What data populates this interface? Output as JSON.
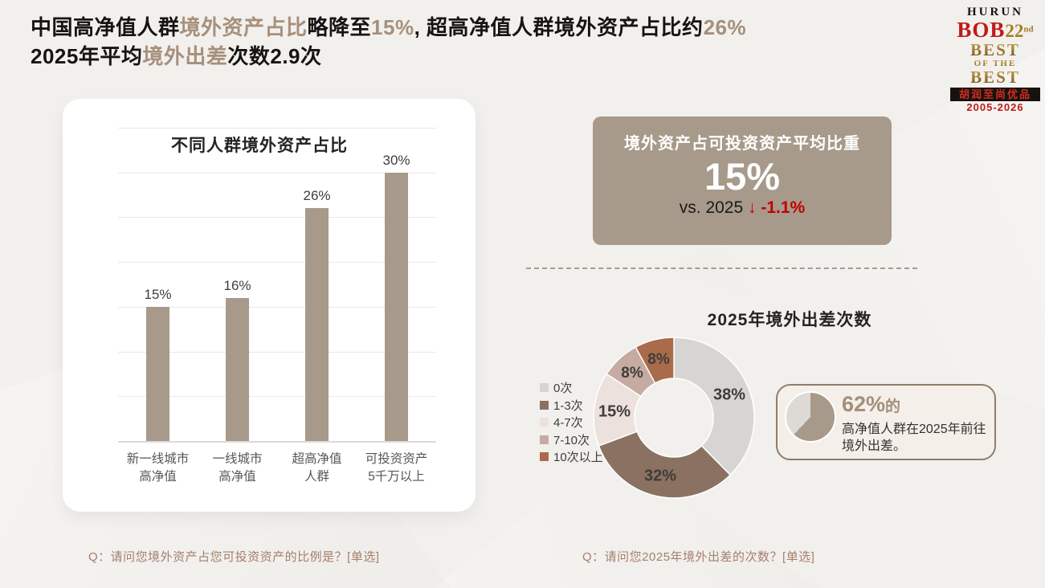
{
  "header": {
    "line1": [
      {
        "text": "中国高净值人群"
      },
      {
        "text": "境外资产占比"
      },
      {
        "text": "略降至"
      },
      {
        "text": "15%"
      },
      {
        "text": ", "
      },
      {
        "text": "超高净值人群境外资产占比约"
      },
      {
        "text": "26%"
      }
    ],
    "line2": [
      {
        "text": "2025年平均"
      },
      {
        "text": "境外出差"
      },
      {
        "text": "次数2.9次"
      }
    ]
  },
  "logo": {
    "brand": "HURUN",
    "bob": "BOB",
    "edition": "22",
    "edition_suffix": "nd",
    "best_line1": "BEST",
    "best_line2": "OF THE",
    "best_line3": "BEST",
    "chinese": "胡润至尚优品",
    "years": "2005-2026"
  },
  "colors": {
    "accent_taupe": "#A79A8B",
    "title_highlight": "#A6907C",
    "alert_red": "#C00000",
    "page_background": "#F2F0ED"
  },
  "chart_data": [
    {
      "type": "bar",
      "title": "不同人群境外资产占比",
      "categories": [
        "新一线城市\n高净值",
        "一线城市\n高净值",
        "超高净值\n人群",
        "可投资资产\n5千万以上"
      ],
      "values": [
        15,
        16,
        26,
        30
      ],
      "value_labels": [
        "15%",
        "16%",
        "26%",
        "30%"
      ],
      "ylabel": "",
      "xlabel": "",
      "ylim": [
        0,
        35
      ],
      "gridline_step": 5,
      "grid": true,
      "bar_color": "#A79A8B"
    },
    {
      "type": "donut",
      "title": "2025年境外出差次数",
      "categories": [
        "0次",
        "1-3次",
        "4-7次",
        "7-10次",
        "10次以上"
      ],
      "values": [
        38,
        32,
        15,
        8,
        8
      ],
      "slice_labels": [
        "38%",
        "32%",
        "15%",
        "8%",
        "8%"
      ],
      "colors": [
        "#D7D5D3",
        "#8A7161",
        "#ECE1DC",
        "#C5ABA1",
        "#A96B4A"
      ],
      "legend_position": "left",
      "start_angle_deg": 0,
      "direction": "clockwise"
    }
  ],
  "highlight_box": {
    "title": "境外资产占可投资资产平均比重",
    "value": "15%",
    "comparison_prefix": "vs. 2025 ",
    "comparison_arrow": "↓ ",
    "comparison_value": "-1.1%"
  },
  "callout": {
    "value": "62%",
    "value_suffix": "的",
    "text_line1": "高净值人群在2025年前往",
    "text_line2": "境外出差。",
    "pie_percent": 62,
    "pie_color": "#A79A8B",
    "pie_rest_color": "#DDD9D4"
  },
  "footnotes": {
    "left": "Q：请问您境外资产占您可投资资产的比例是？[单选]",
    "right": "Q：请问您2025年境外出差的次数？[单选]"
  }
}
